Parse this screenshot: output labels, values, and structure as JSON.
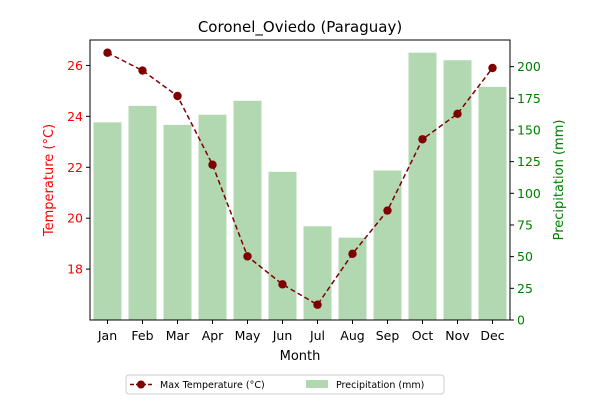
{
  "chart_data": {
    "type": "bar+line",
    "title": "Coronel_Oviedo (Paraguay)",
    "xlabel": "Month",
    "ylabel_left": "Temperature (°C)",
    "ylabel_right": "Precipitation (mm)",
    "categories": [
      "Jan",
      "Feb",
      "Mar",
      "Apr",
      "May",
      "Jun",
      "Jul",
      "Aug",
      "Sep",
      "Oct",
      "Nov",
      "Dec"
    ],
    "ylim_left": [
      16.0,
      27.0
    ],
    "ylim_right": [
      0,
      221
    ],
    "yticks_left": [
      18,
      20,
      22,
      24,
      26
    ],
    "yticks_right": [
      0,
      25,
      50,
      75,
      100,
      125,
      150,
      175,
      200
    ],
    "grid": false,
    "legend_position": "bottom-center",
    "series": [
      {
        "name": "Max Temperature (°C)",
        "kind": "line",
        "axis": "left",
        "color": "#7f0000",
        "values": [
          26.5,
          25.8,
          24.8,
          22.1,
          18.5,
          17.4,
          16.6,
          18.6,
          20.3,
          23.1,
          24.1,
          25.9
        ]
      },
      {
        "name": "Precipitation (mm)",
        "kind": "bar",
        "axis": "right",
        "color": "#b2d8b2",
        "values": [
          156,
          169,
          154,
          162,
          173,
          117,
          74,
          65,
          118,
          211,
          205,
          184
        ]
      }
    ],
    "colors": {
      "left_axis": "#ff0000",
      "right_axis": "#008000"
    }
  }
}
